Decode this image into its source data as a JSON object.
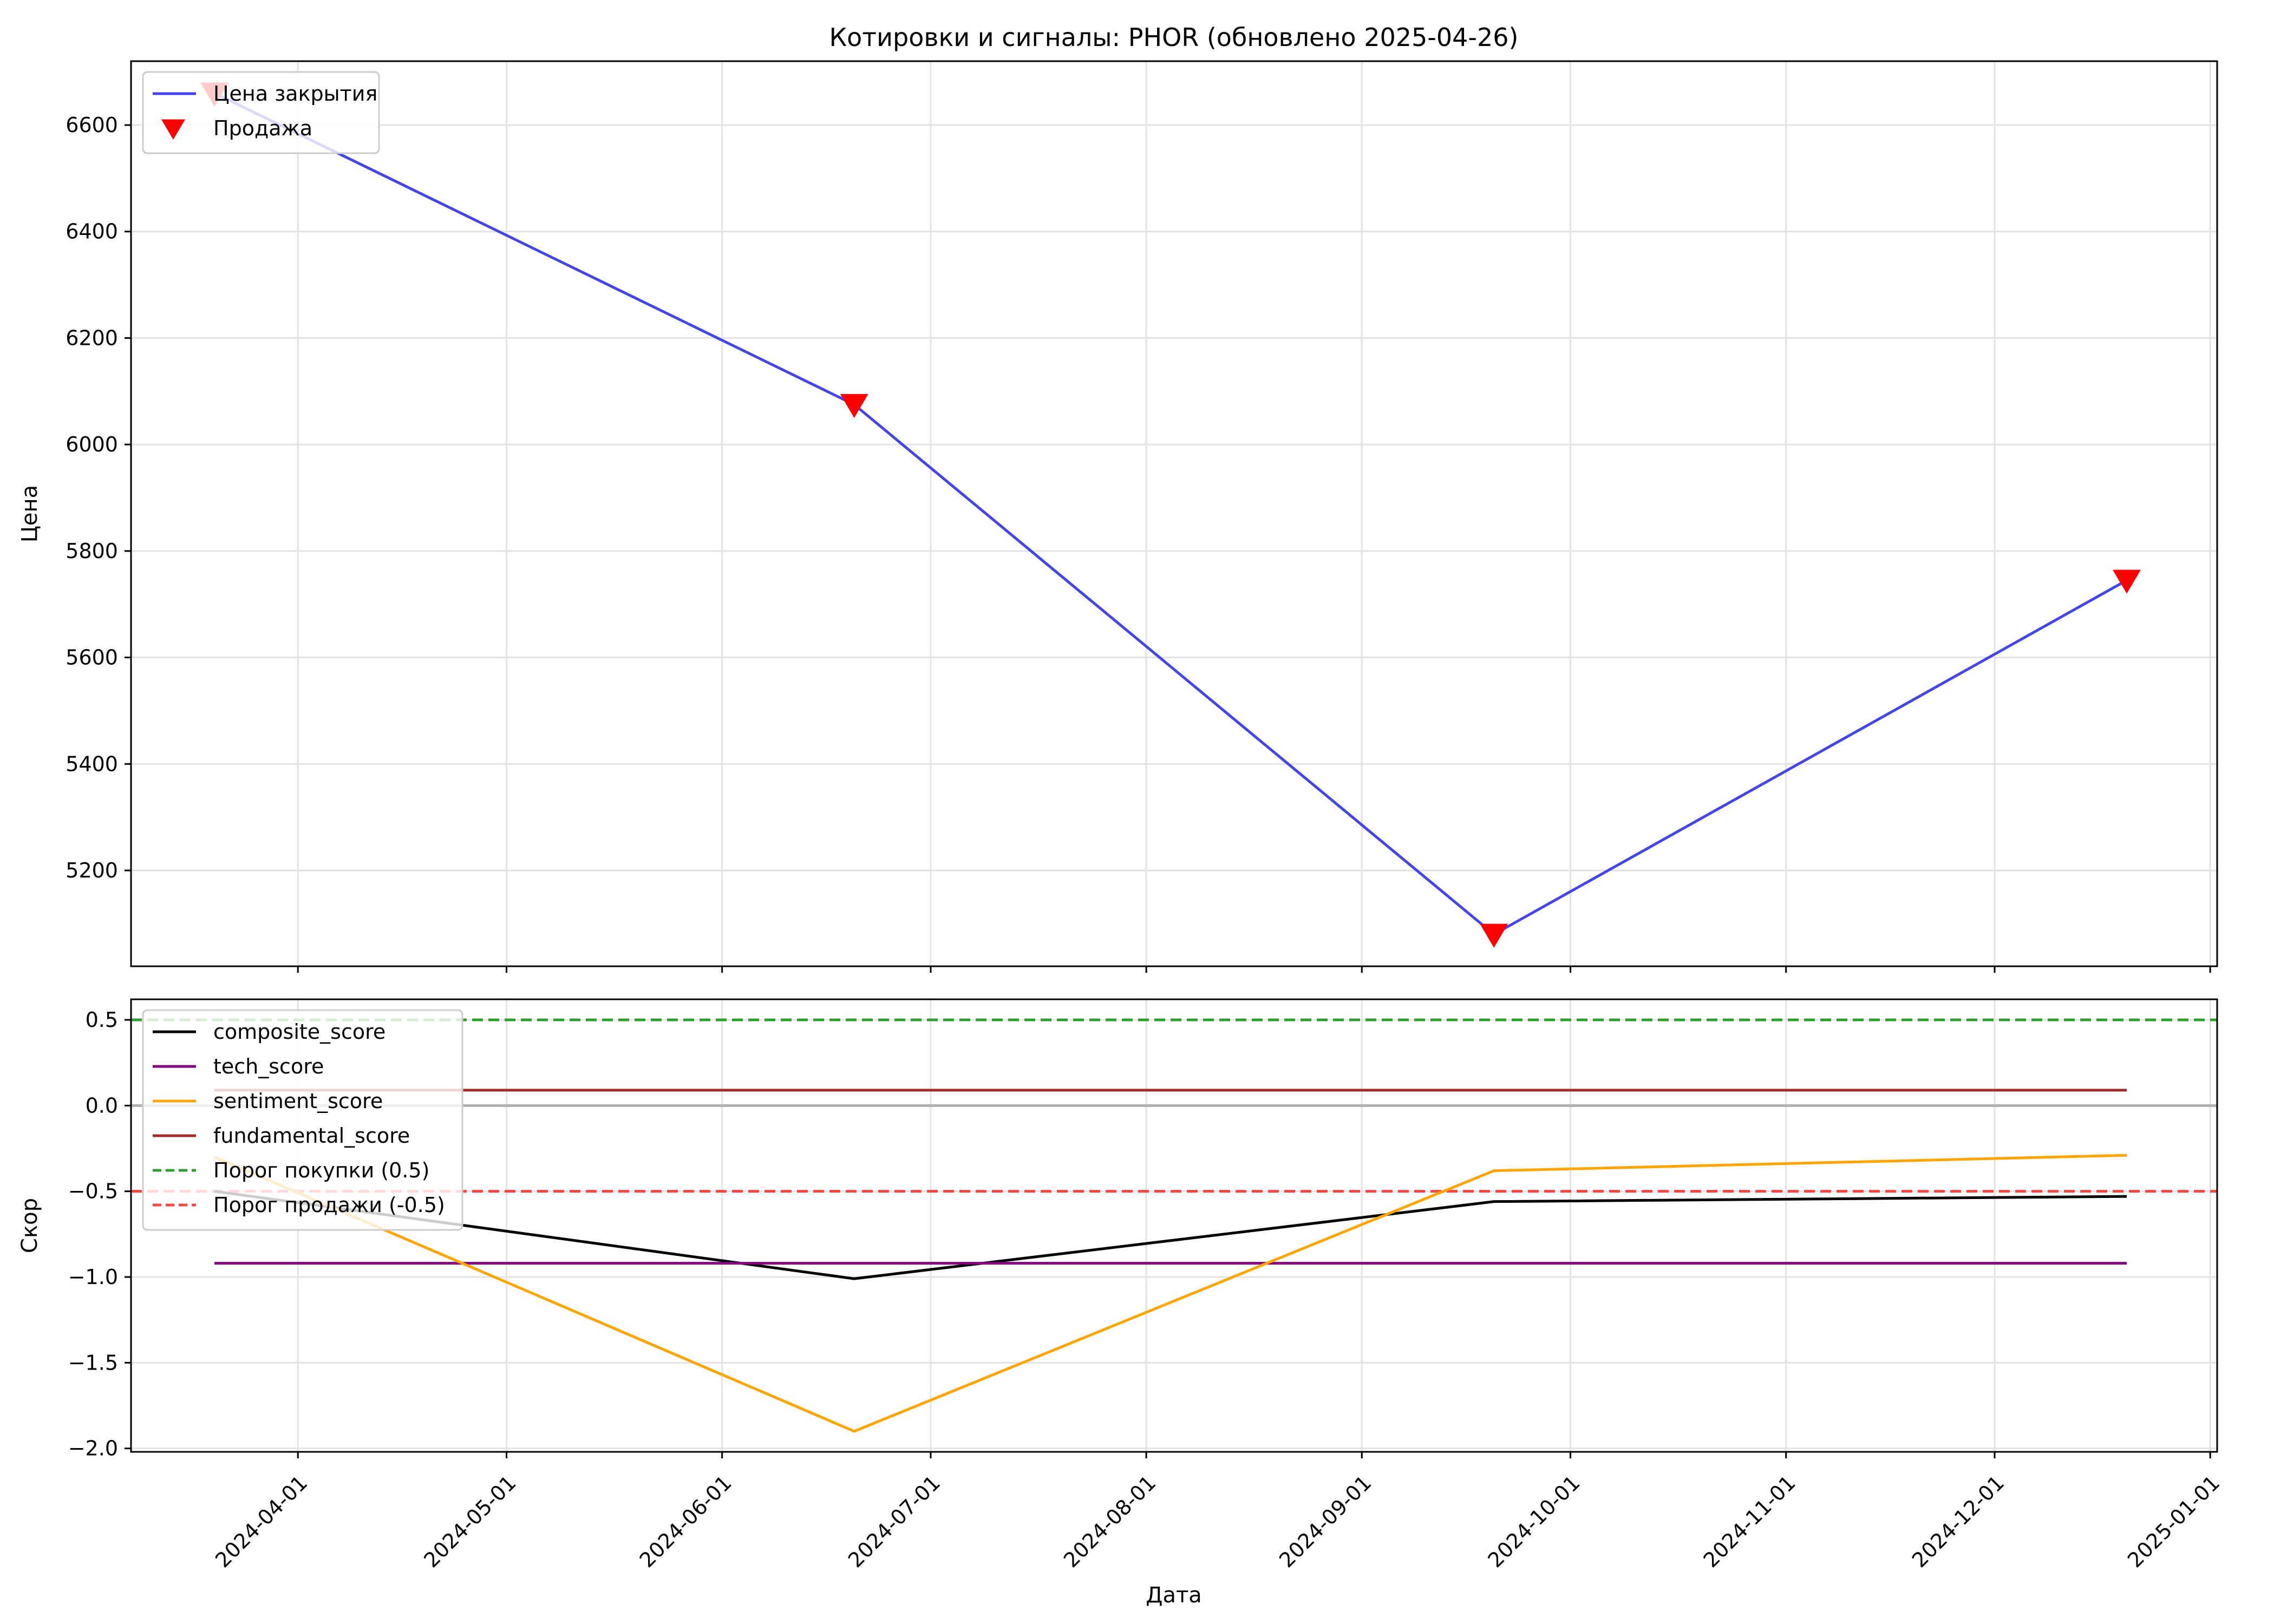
{
  "figure": {
    "title": "Котировки и сигналы: PHOR (обновлено 2025-04-26)",
    "xlabel": "Дата"
  },
  "chart_data": [
    {
      "type": "line",
      "title": "Котировки и сигналы: PHOR (обновлено 2025-04-26)",
      "ylabel": "Цена",
      "x": [
        "2024-03-20",
        "2024-06-20",
        "2024-09-20",
        "2024-12-20"
      ],
      "series": [
        {
          "name": "Цена закрытия",
          "color": "#4444ee",
          "values": [
            6660,
            6075,
            5080,
            5745
          ]
        },
        {
          "name": "Продажа",
          "kind": "marker",
          "marker": "triangle-down",
          "color": "#ff0000",
          "values": [
            6660,
            6075,
            5080,
            5745
          ]
        }
      ],
      "xlim": [
        "2024-03-08",
        "2025-01-02"
      ],
      "ylim": [
        5020,
        6720
      ],
      "yticks": [
        5200,
        5400,
        5600,
        5800,
        6000,
        6200,
        6400,
        6600
      ],
      "grid": true,
      "legend": "upper-left"
    },
    {
      "type": "line",
      "ylabel": "Скор",
      "xlabel": "Дата",
      "x": [
        "2024-03-20",
        "2024-06-20",
        "2024-09-20",
        "2024-12-20"
      ],
      "series": [
        {
          "name": "composite_score",
          "color": "#000000",
          "values": [
            -0.5,
            -1.01,
            -0.56,
            -0.53
          ]
        },
        {
          "name": "tech_score",
          "color": "#800080",
          "values": [
            -0.92,
            -0.92,
            -0.92,
            -0.92
          ]
        },
        {
          "name": "sentiment_score",
          "color": "#ffa500",
          "values": [
            -0.3,
            -1.9,
            -0.38,
            -0.29
          ]
        },
        {
          "name": "fundamental_score",
          "color": "#a52a2a",
          "values": [
            0.09,
            0.09,
            0.09,
            0.09
          ]
        }
      ],
      "hlines": [
        {
          "name": "Порог покупки (0.5)",
          "y": 0.5,
          "color": "#2ca02c",
          "style": "dashed"
        },
        {
          "name": "Порог продажи (-0.5)",
          "y": -0.5,
          "color": "#ff4444",
          "style": "dashed"
        },
        {
          "name": "",
          "y": 0,
          "color": "#b0b0b0",
          "style": "solid"
        }
      ],
      "xlim": [
        "2024-03-08",
        "2025-01-02"
      ],
      "ylim": [
        -2.02,
        0.62
      ],
      "yticks": [
        -2.0,
        -1.5,
        -1.0,
        -0.5,
        0.0,
        0.5
      ],
      "ytick_labels": [
        "−2.0",
        "−1.5",
        "−1.0",
        "−0.5",
        "0.0",
        "0.5"
      ],
      "xticks": [
        "2024-04-01",
        "2024-05-01",
        "2024-06-01",
        "2024-07-01",
        "2024-08-01",
        "2024-09-01",
        "2024-10-01",
        "2024-11-01",
        "2024-12-01",
        "2025-01-01"
      ],
      "grid": true,
      "legend": "upper-left"
    }
  ]
}
